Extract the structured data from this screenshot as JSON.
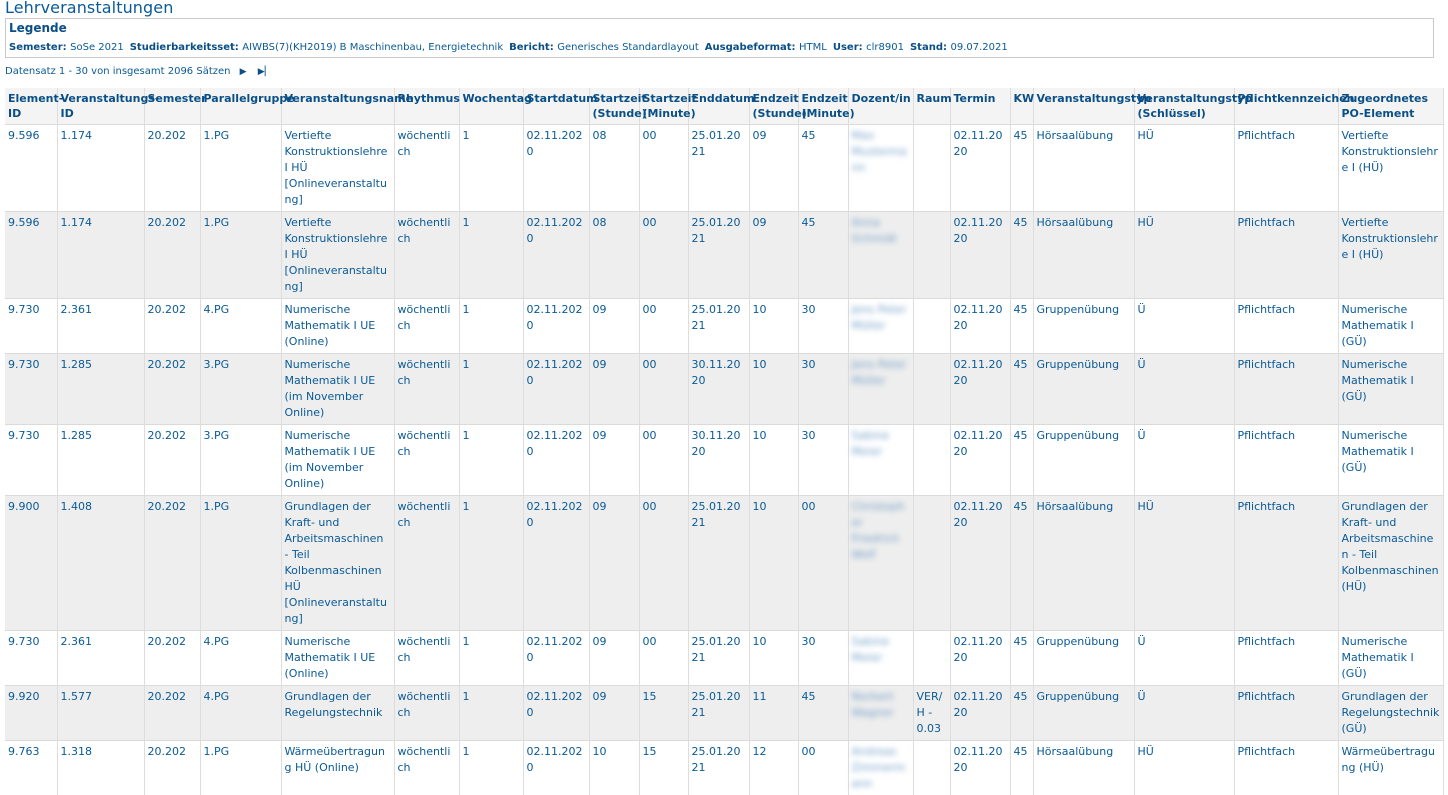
{
  "page": {
    "title": "Lehrveranstaltungen"
  },
  "legend": {
    "title": "Legende",
    "items": [
      {
        "key": "Semester",
        "value": "SoSe 2021"
      },
      {
        "key": "Studierbarkeitsset",
        "value": "AIWBS(7)(KH2019) B Maschinenbau, Energietechnik"
      },
      {
        "key": "Bericht",
        "value": "Generisches Standardlayout"
      },
      {
        "key": "Ausgabeformat",
        "value": "HTML"
      },
      {
        "key": "User",
        "value": "clr8901"
      },
      {
        "key": "Stand",
        "value": "09.07.2021"
      }
    ]
  },
  "pager": {
    "text": "Datensatz 1 - 30 von insgesamt 2096 Sätzen",
    "next_icon": "play-next-icon",
    "last_icon": "skip-to-last-icon"
  },
  "table": {
    "headers": [
      "Element-ID",
      "Veranstaltungs-ID",
      "Semester",
      "Parallelgruppe",
      "Veranstaltungsname",
      "Rhythmus",
      "Wochentag",
      "Startdatum",
      "Startzeit (Stunde)",
      "Startzeit (Minute)",
      "Enddatum",
      "Endzeit (Stunde)",
      "Endzeit (Minute)",
      "Dozent/in",
      "Raum",
      "Termin",
      "KW",
      "Veranstaltungstyp",
      "Veranstaltungstyp (Schlüssel)",
      "Pflichtkennzeichen",
      "Zugeordnetes PO-Element"
    ],
    "rows": [
      [
        "9.596",
        "1.174",
        "20.202",
        "1.PG",
        "Vertiefte Konstruktionslehre I HÜ [Onlineveranstaltung]",
        "wöchentlich",
        "1",
        "02.11.2020",
        "08",
        "00",
        "25.01.2021",
        "09",
        "45",
        "Max Mustermann",
        "",
        "02.11.2020",
        "45",
        "Hörsaalübung",
        "HÜ",
        "Pflichtfach",
        "Vertiefte Konstruktionslehre I (HÜ)"
      ],
      [
        "9.596",
        "1.174",
        "20.202",
        "1.PG",
        "Vertiefte Konstruktionslehre I HÜ [Onlineveranstaltung]",
        "wöchentlich",
        "1",
        "02.11.2020",
        "08",
        "00",
        "25.01.2021",
        "09",
        "45",
        "Anna Schmidt",
        "",
        "02.11.2020",
        "45",
        "Hörsaalübung",
        "HÜ",
        "Pflichtfach",
        "Vertiefte Konstruktionslehre I (HÜ)"
      ],
      [
        "9.730",
        "2.361",
        "20.202",
        "4.PG",
        "Numerische Mathematik I UE (Online)",
        "wöchentlich",
        "1",
        "02.11.2020",
        "09",
        "00",
        "25.01.2021",
        "10",
        "30",
        "Jens Peter Müller",
        "",
        "02.11.2020",
        "45",
        "Gruppenübung",
        "Ü",
        "Pflichtfach",
        "Numerische Mathematik I (GÜ)"
      ],
      [
        "9.730",
        "1.285",
        "20.202",
        "3.PG",
        "Numerische Mathematik I UE (im November Online)",
        "wöchentlich",
        "1",
        "02.11.2020",
        "09",
        "00",
        "30.11.2020",
        "10",
        "30",
        "Jens Peter Müller",
        "",
        "02.11.2020",
        "45",
        "Gruppenübung",
        "Ü",
        "Pflichtfach",
        "Numerische Mathematik I (GÜ)"
      ],
      [
        "9.730",
        "1.285",
        "20.202",
        "3.PG",
        "Numerische Mathematik I UE (im November Online)",
        "wöchentlich",
        "1",
        "02.11.2020",
        "09",
        "00",
        "30.11.2020",
        "10",
        "30",
        "Sabine Meier",
        "",
        "02.11.2020",
        "45",
        "Gruppenübung",
        "Ü",
        "Pflichtfach",
        "Numerische Mathematik I (GÜ)"
      ],
      [
        "9.900",
        "1.408",
        "20.202",
        "1.PG",
        "Grundlagen der Kraft- und Arbeitsmaschinen - Teil Kolbenmaschinen HÜ [Onlineveranstaltung]",
        "wöchentlich",
        "1",
        "02.11.2020",
        "09",
        "00",
        "25.01.2021",
        "10",
        "00",
        "Christopher Friedrich Wolf",
        "",
        "02.11.2020",
        "45",
        "Hörsaalübung",
        "HÜ",
        "Pflichtfach",
        "Grundlagen der Kraft- und Arbeitsmaschinen - Teil Kolbenmaschinen (HÜ)"
      ],
      [
        "9.730",
        "2.361",
        "20.202",
        "4.PG",
        "Numerische Mathematik I UE (Online)",
        "wöchentlich",
        "1",
        "02.11.2020",
        "09",
        "00",
        "25.01.2021",
        "10",
        "30",
        "Sabine Meier",
        "",
        "02.11.2020",
        "45",
        "Gruppenübung",
        "Ü",
        "Pflichtfach",
        "Numerische Mathematik I (GÜ)"
      ],
      [
        "9.920",
        "1.577",
        "20.202",
        "4.PG",
        "Grundlagen der Regelungstechnik",
        "wöchentlich",
        "1",
        "02.11.2020",
        "09",
        "15",
        "25.01.2021",
        "11",
        "45",
        "Norbert Wagner",
        "VER/H - 0.03",
        "02.11.2020",
        "45",
        "Gruppenübung",
        "Ü",
        "Pflichtfach",
        "Grundlagen der Regelungstechnik (GÜ)"
      ],
      [
        "9.763",
        "1.318",
        "20.202",
        "1.PG",
        "Wärmeübertragung HÜ (Online)",
        "wöchentlich",
        "1",
        "02.11.2020",
        "10",
        "15",
        "25.01.2021",
        "12",
        "00",
        "Andreas Zimmermann",
        "",
        "02.11.2020",
        "45",
        "Hörsaalübung",
        "HÜ",
        "Pflichtfach",
        "Wärmeübertragung (HÜ)"
      ]
    ]
  }
}
